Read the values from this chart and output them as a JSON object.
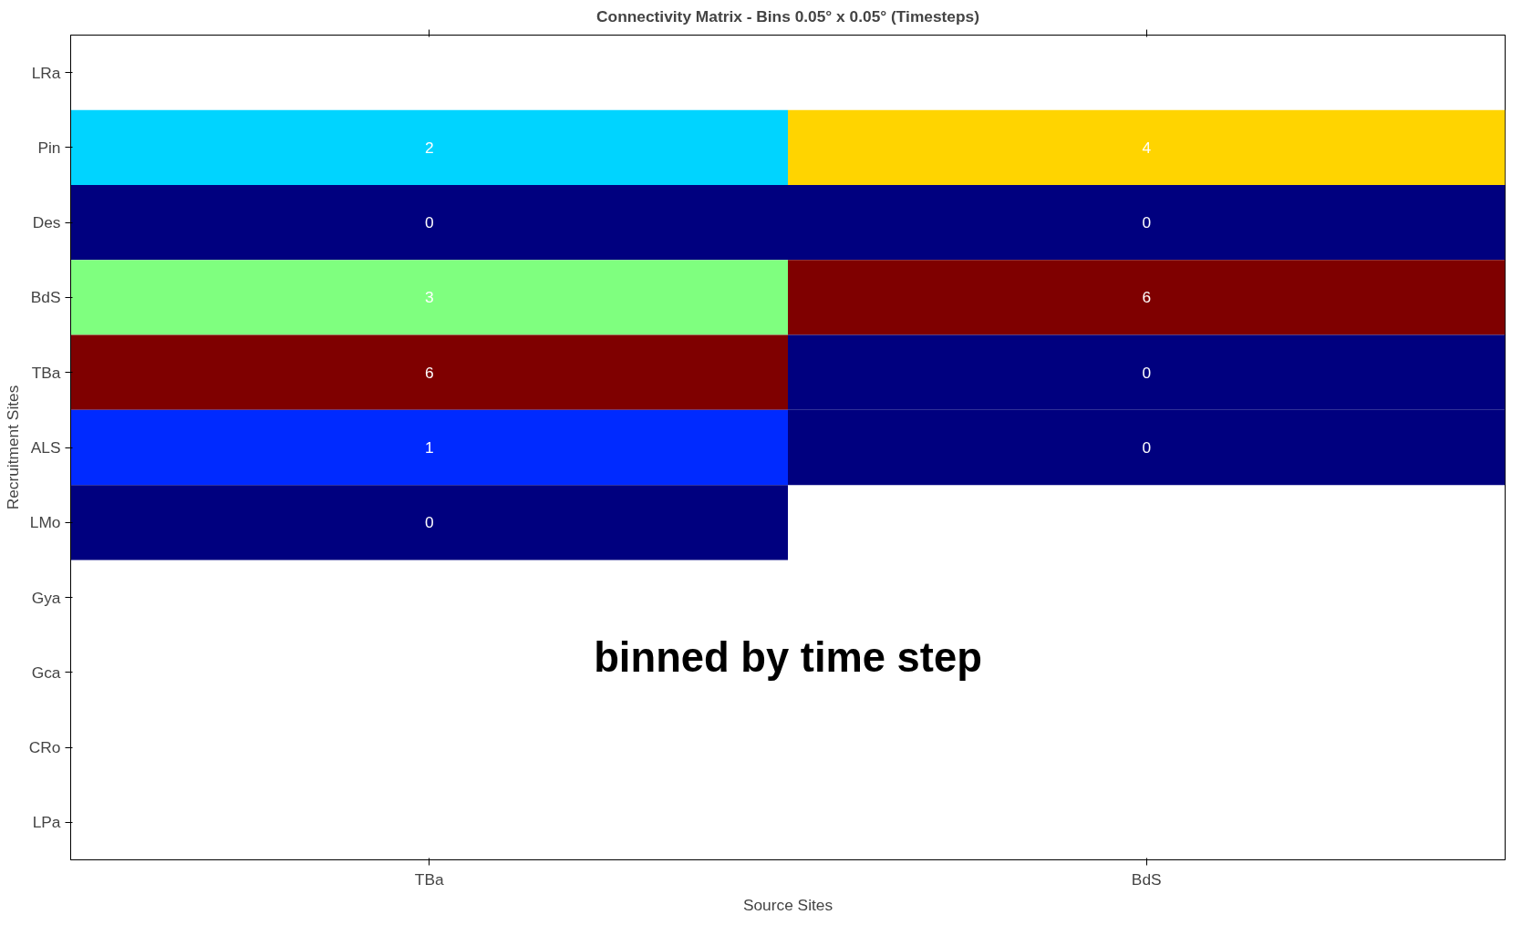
{
  "chart_data": {
    "type": "heatmap",
    "title": "Connectivity Matrix - Bins 0.05° x 0.05° (Timesteps)",
    "xlabel": "Source Sites",
    "ylabel": "Recruitment Sites",
    "categories": [
      "TBa",
      "BdS"
    ],
    "y_categories": [
      "LRa",
      "Pin",
      "Des",
      "BdS",
      "TBa",
      "ALS",
      "LMo",
      "Gya",
      "Gca",
      "CRo",
      "LPa"
    ],
    "cells": [
      [
        null,
        null
      ],
      [
        2,
        4
      ],
      [
        0,
        0
      ],
      [
        3,
        6
      ],
      [
        6,
        0
      ],
      [
        1,
        0
      ],
      [
        0,
        null
      ],
      [
        null,
        null
      ],
      [
        null,
        null
      ],
      [
        null,
        null
      ],
      [
        null,
        null
      ]
    ],
    "data_labels": true,
    "grid": false,
    "annotations": [
      "binned by time step"
    ]
  }
}
